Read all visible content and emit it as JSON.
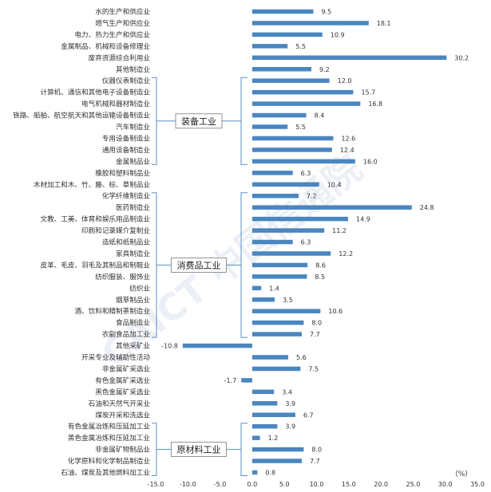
{
  "chart_data": {
    "type": "bar",
    "orientation": "horizontal",
    "unit_label": "（%）",
    "watermark": "CAICT 中国信通院",
    "bar_color": "#4a86c0",
    "bracket_color": "#5b8ec9",
    "xlim": [
      -15,
      35
    ],
    "xticks": [
      "-15.0",
      "-10.0",
      "-5.0",
      "0.0",
      "5.0",
      "10.0",
      "15.0",
      "20.0",
      "25.0",
      "30.0",
      "35.0"
    ],
    "categories": [
      "水的生产和供应业",
      "燃气生产和供应业",
      "电力、热力生产和供应业",
      "金属制品、机械和设备修理业",
      "废弃资源综合利用业",
      "其他制造业",
      "仪器仪表制造业",
      "计算机、通信和其他电子设备制造业",
      "电气机械和器材制造业",
      "铁路、船舶、航空航天和其他运输设备制造业",
      "汽车制造业",
      "专用设备制造业",
      "通用设备制造业",
      "金属制品业",
      "橡胶和塑料制品业",
      "木材加工和木、竹、藤、棕、草制品业",
      "化学纤维制造业",
      "医药制造业",
      "文教、工美、体育和娱乐用品制造业",
      "印刷和记录媒介复制业",
      "造纸和纸制品业",
      "家具制造业",
      "皮革、毛皮、羽毛及其制品和制鞋业",
      "纺织服装、服饰业",
      "纺织业",
      "烟草制品业",
      "酒、饮料和精制茶制造业",
      "食品制造业",
      "农副食品加工业",
      "其他采矿业",
      "开采专业及辅助性活动",
      "非金属矿采选业",
      "有色金属矿采选业",
      "黑色金属矿采选业",
      "石油和天然气开采业",
      "煤炭开采和洗选业",
      "有色金属冶炼和压延加工业",
      "黑色金属冶炼和压延加工业",
      "非金属矿物制品业",
      "化学原料和化学制品制造业",
      "石油、煤炭及其他燃料加工业"
    ],
    "values": [
      9.5,
      18.1,
      10.9,
      5.5,
      30.2,
      9.2,
      12.0,
      15.7,
      16.8,
      8.4,
      5.5,
      12.6,
      12.4,
      16.0,
      6.3,
      10.4,
      7.2,
      24.8,
      14.9,
      11.2,
      6.3,
      12.2,
      8.6,
      8.5,
      1.4,
      3.5,
      10.6,
      8.0,
      7.7,
      -10.8,
      5.6,
      7.5,
      -1.7,
      3.4,
      3.9,
      6.7,
      3.9,
      1.2,
      8.0,
      7.7,
      0.8
    ],
    "value_labels": [
      "9.5",
      "18.1",
      "10.9",
      "5.5",
      "30.2",
      "9.2",
      "12.0",
      "15.7",
      "16.8",
      "8.4",
      "5.5",
      "12.6",
      "12.4",
      "16.0",
      "6.3",
      "10.4",
      "7.2",
      "24.8",
      "14.9",
      "11.2",
      "6.3",
      "12.2",
      "8.6",
      "8.5",
      "1.4",
      "3.5",
      "10.6",
      "8.0",
      "7.7",
      "-10.8",
      "5.6",
      "7.5",
      "-1.7",
      "3.4",
      "3.9",
      "6.7",
      "3.9",
      "1.2",
      "8.0",
      "7.7",
      "0.8"
    ],
    "groups": [
      {
        "label": "装备工业",
        "first": 6,
        "last": 13
      },
      {
        "label": "消费品工业",
        "first": 16,
        "last": 28
      },
      {
        "label": "原材料工业",
        "first": 36,
        "last": 40
      }
    ]
  }
}
